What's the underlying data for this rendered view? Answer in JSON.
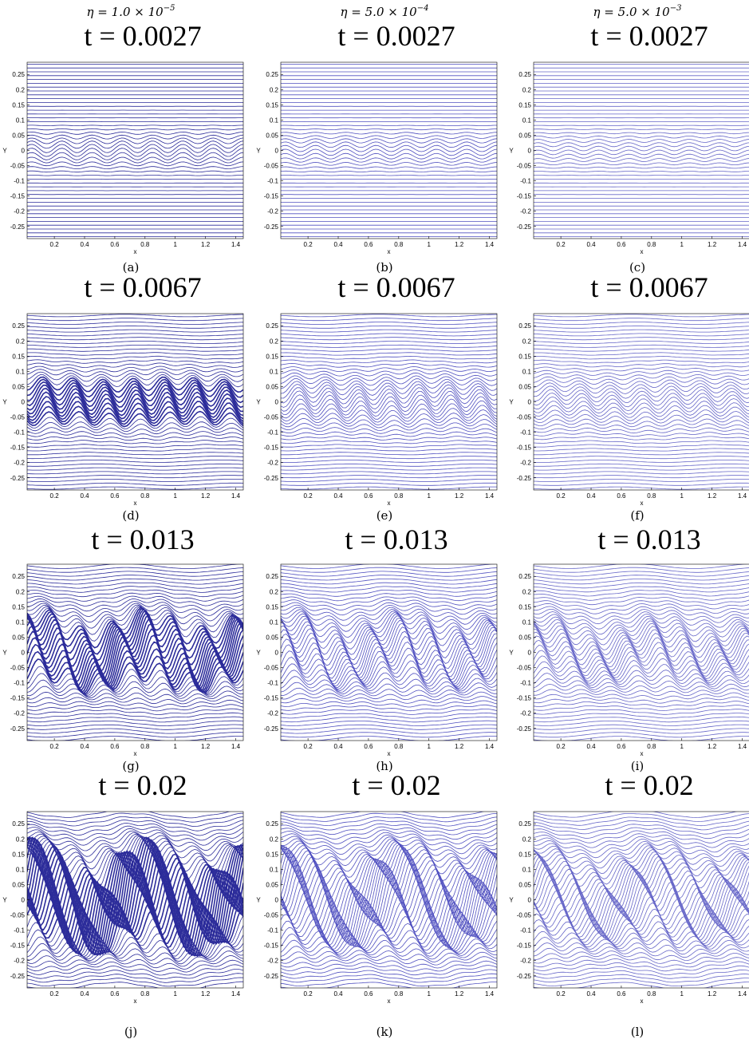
{
  "columns": [
    {
      "prefix": "η = 1.0 × 10",
      "exponent": "−5"
    },
    {
      "prefix": "η = 5.0 × 10",
      "exponent": "−4"
    },
    {
      "prefix": "η = 5.0 × 10",
      "exponent": "−3"
    }
  ],
  "axes": {
    "xlabel": "x",
    "ylabel": "Y",
    "xlim": [
      0.02,
      1.45
    ],
    "ylim": [
      -0.29,
      0.29
    ],
    "xticks": [
      0.2,
      0.4,
      0.6,
      0.8,
      1,
      1.2,
      1.4
    ],
    "yticks": [
      0.25,
      0.2,
      0.15,
      0.1,
      0.05,
      0,
      -0.05,
      -0.1,
      -0.15,
      -0.2,
      -0.25
    ]
  },
  "panels": [
    {
      "title": "t = 0.0027",
      "caption": "(a)"
    },
    {
      "title": "t = 0.0027",
      "caption": "(b)"
    },
    {
      "title": "t = 0.0027",
      "caption": "(c)"
    },
    {
      "title": "t = 0.0067",
      "caption": "(d)"
    },
    {
      "title": "t = 0.0067",
      "caption": "(e)"
    },
    {
      "title": "t = 0.0067",
      "caption": "(f)"
    },
    {
      "title": "t = 0.013",
      "caption": "(g)"
    },
    {
      "title": "t = 0.013",
      "caption": "(h)"
    },
    {
      "title": "t = 0.013",
      "caption": "(i)"
    },
    {
      "title": "t = 0.02",
      "caption": "(j)"
    },
    {
      "title": "t = 0.02",
      "caption": "(k)"
    },
    {
      "title": "t = 0.02",
      "caption": "(l)"
    }
  ]
}
